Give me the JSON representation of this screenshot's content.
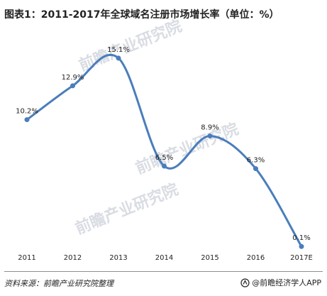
{
  "title": "图表1：2011-2017年全球域名注册市场增长率（单位：%）",
  "source": "资料来源：前瞻产业研究院整理",
  "brand": "@前瞻经济学人APP",
  "watermark": "前瞻产业研究院",
  "colors": {
    "line": "#4a7ebb",
    "marker": "#4a7ebb",
    "text": "#222222"
  },
  "chart_data": {
    "type": "line",
    "title": "图表1：2011-2017年全球域名注册市场增长率（单位：%）",
    "xlabel": "",
    "ylabel": "",
    "grid": false,
    "legend": "none",
    "categories": [
      "2011",
      "2012",
      "2013",
      "2014",
      "2015",
      "2016",
      "2017E"
    ],
    "series": [
      {
        "values": [
          10.2,
          12.9,
          15.1,
          6.5,
          8.9,
          6.3,
          0.1
        ],
        "labels": [
          "10.2%",
          "12.9%",
          "15.1%",
          "6.5%",
          "8.9%",
          "6.3%",
          "0.1%"
        ]
      }
    ],
    "ylim": [
      0,
      16
    ],
    "smooth": true
  }
}
